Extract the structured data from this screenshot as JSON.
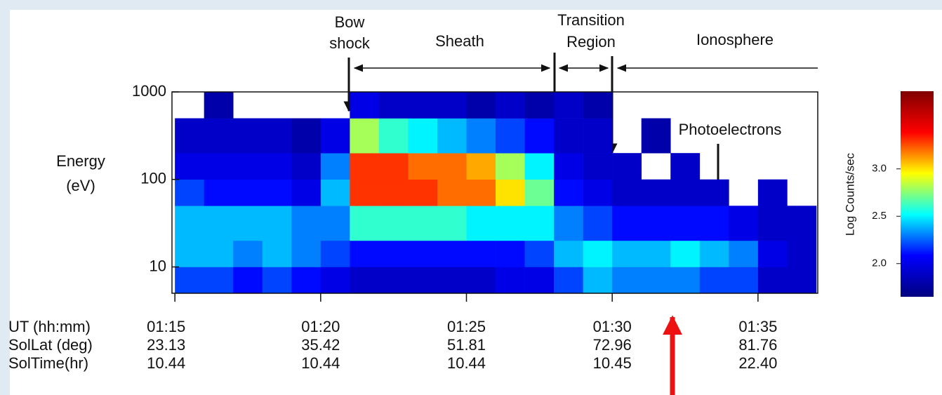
{
  "chart_data": {
    "type": "heatmap",
    "ylabel": [
      "Energy",
      "(eV)"
    ],
    "annotations": {
      "bow_shock": [
        "Bow",
        "shock"
      ],
      "sheath": "Sheath",
      "transition": [
        "Transition",
        "Region"
      ],
      "ionosphere": "Ionosphere",
      "photoelectrons": "Photoelectrons"
    },
    "xlim": [
      74.9,
      97.05
    ],
    "xticks": [
      {
        "value": 75,
        "label": "01:15"
      },
      {
        "value": 80,
        "label": "01:20"
      },
      {
        "value": 85,
        "label": "01:25"
      },
      {
        "value": 90,
        "label": "01:30"
      },
      {
        "value": 95,
        "label": "01:35"
      }
    ],
    "xlabel": "UT (hh:mm)",
    "tick_rows": [
      {
        "label": "SolLat (deg)",
        "values": [
          "23.13",
          "35.42",
          "51.81",
          "72.96",
          "81.76"
        ]
      },
      {
        "label": "SolTime(hr)",
        "values": [
          "10.44",
          "10.44",
          "10.44",
          "10.45",
          "22.40"
        ]
      }
    ],
    "ylim": [
      5,
      1000
    ],
    "yscale": "log",
    "yticks": [
      10,
      100,
      1000
    ],
    "x_bins": [
      75,
      76,
      77,
      78,
      79,
      80,
      81,
      82,
      83,
      84,
      85,
      86,
      87,
      88,
      89,
      90,
      91,
      92,
      93,
      94,
      95,
      96,
      97
    ],
    "y_bins": [
      5,
      10,
      20,
      50,
      100,
      200,
      500,
      1000
    ],
    "values": [
      [
        2.2,
        2.2,
        2.1,
        2.2,
        2.1,
        2.0,
        1.9,
        1.9,
        1.9,
        1.9,
        1.9,
        2.0,
        2.0,
        2.2,
        2.4,
        2.3,
        2.3,
        2.3,
        2.2,
        2.2,
        1.9,
        1.9
      ],
      [
        2.4,
        2.4,
        2.3,
        2.4,
        2.3,
        2.2,
        2.1,
        2.1,
        2.1,
        2.1,
        2.1,
        2.1,
        2.2,
        2.4,
        2.5,
        2.4,
        2.4,
        2.5,
        2.4,
        2.3,
        2.0,
        1.9
      ],
      [
        2.4,
        2.4,
        2.4,
        2.4,
        2.3,
        2.3,
        2.6,
        2.6,
        2.6,
        2.6,
        2.5,
        2.5,
        2.5,
        2.3,
        2.2,
        2.1,
        2.1,
        2.1,
        2.1,
        2.0,
        1.9,
        1.9
      ],
      [
        2.2,
        2.1,
        2.1,
        2.1,
        2.0,
        2.4,
        3.3,
        3.3,
        3.3,
        3.2,
        3.2,
        3.0,
        2.7,
        2.1,
        2.0,
        1.9,
        1.9,
        1.9,
        1.9,
        null,
        1.9,
        null
      ],
      [
        2.0,
        2.0,
        2.0,
        2.0,
        1.9,
        2.3,
        3.3,
        3.3,
        3.2,
        3.2,
        3.1,
        2.8,
        2.5,
        2.0,
        1.9,
        1.9,
        null,
        1.9,
        null,
        null,
        null,
        null
      ],
      [
        1.9,
        1.9,
        1.9,
        1.9,
        1.8,
        2.0,
        2.8,
        2.6,
        2.5,
        2.4,
        2.3,
        2.2,
        2.1,
        1.9,
        1.9,
        null,
        1.8,
        null,
        null,
        null,
        null,
        null
      ],
      [
        null,
        1.8,
        null,
        null,
        null,
        null,
        2.0,
        1.9,
        1.9,
        1.9,
        1.8,
        1.9,
        1.8,
        1.9,
        1.8,
        null,
        null,
        null,
        null,
        null,
        null,
        null
      ]
    ],
    "colormap": [
      "#00007f",
      "#0000ff",
      "#00ffff",
      "#ffff00",
      "#ff0000",
      "#7f0000"
    ],
    "clim": [
      1.65,
      3.82
    ],
    "cticks": [
      {
        "value": 2,
        "label": "2.0"
      },
      {
        "value": 2.5,
        "label": "2.5"
      },
      {
        "value": 3,
        "label": "3.0"
      }
    ],
    "colorbar_label": "Log Counts/sec"
  }
}
